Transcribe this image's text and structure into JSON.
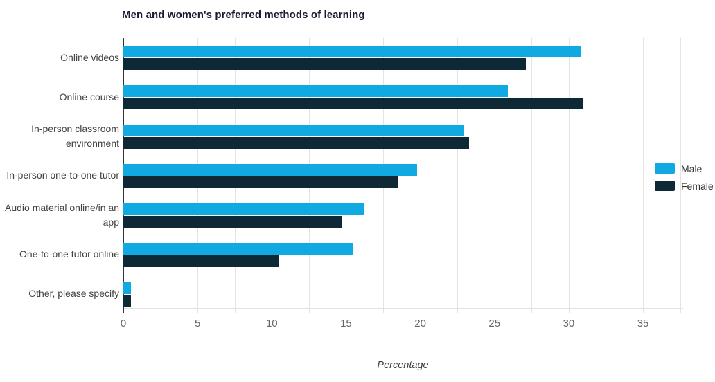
{
  "chart_data": {
    "type": "bar",
    "orientation": "horizontal",
    "title": "Men and women's preferred methods of learning",
    "xlabel": "Percentage",
    "categories": [
      "Online videos",
      "Online course",
      "In-person classroom environment",
      "In-person one-to-one tutor",
      "Audio material online/in an app",
      "One-to-one tutor online",
      "Other, please specify"
    ],
    "series": [
      {
        "name": "Male",
        "color": "#10a9e2",
        "values": [
          30.8,
          25.9,
          22.9,
          19.8,
          16.2,
          15.5,
          0.5
        ]
      },
      {
        "name": "Female",
        "color": "#0e2836",
        "values": [
          27.1,
          31.0,
          23.3,
          18.5,
          14.7,
          10.5,
          0.5
        ]
      }
    ],
    "xlim": [
      0,
      37.5
    ],
    "x_major_ticks": [
      0,
      5,
      10,
      15,
      20,
      25,
      30,
      35
    ],
    "x_minor_step": 2.5,
    "grid": true,
    "legend_position": "right"
  }
}
